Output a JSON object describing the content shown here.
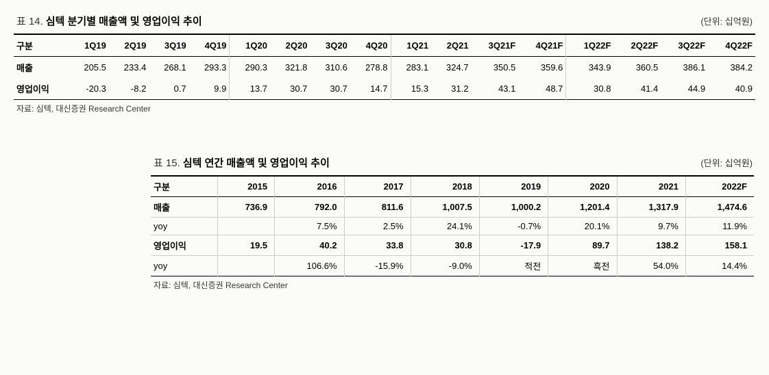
{
  "table14": {
    "prefix": "표 14.",
    "title": "심텍 분기별 매출액 및 영업이익 추이",
    "unit": "(단위: 십억원)",
    "columns": [
      "구분",
      "1Q19",
      "2Q19",
      "3Q19",
      "4Q19",
      "1Q20",
      "2Q20",
      "3Q20",
      "4Q20",
      "1Q21",
      "2Q21",
      "3Q21F",
      "4Q21F",
      "1Q22F",
      "2Q22F",
      "3Q22F",
      "4Q22F"
    ],
    "rows": [
      {
        "label": "매출",
        "values": [
          "205.5",
          "233.4",
          "268.1",
          "293.3",
          "290.3",
          "321.8",
          "310.6",
          "278.8",
          "283.1",
          "324.7",
          "350.5",
          "359.6",
          "343.9",
          "360.5",
          "386.1",
          "384.2"
        ]
      },
      {
        "label": "영업이익",
        "values": [
          "-20.3",
          "-8.2",
          "0.7",
          "9.9",
          "13.7",
          "30.7",
          "30.7",
          "14.7",
          "15.3",
          "31.2",
          "43.1",
          "48.7",
          "30.8",
          "41.4",
          "44.9",
          "40.9"
        ]
      }
    ],
    "group_starts": [
      5,
      9,
      13
    ],
    "source": "자료: 심텍, 대신증권 Research Center"
  },
  "table15": {
    "prefix": "표 15.",
    "title": "심텍 연간 매출액 및 영업이익 추이",
    "unit": "(단위: 십억원)",
    "columns": [
      "구분",
      "2015",
      "2016",
      "2017",
      "2018",
      "2019",
      "2020",
      "2021",
      "2022F"
    ],
    "rows": [
      {
        "label": "매출",
        "bold": true,
        "values": [
          "736.9",
          "792.0",
          "811.6",
          "1,007.5",
          "1,000.2",
          "1,201.4",
          "1,317.9",
          "1,474.6"
        ]
      },
      {
        "label": "yoy",
        "bold": false,
        "values": [
          "",
          "7.5%",
          "2.5%",
          "24.1%",
          "-0.7%",
          "20.1%",
          "9.7%",
          "11.9%"
        ]
      },
      {
        "label": "영업이익",
        "bold": true,
        "values": [
          "19.5",
          "40.2",
          "33.8",
          "30.8",
          "-17.9",
          "89.7",
          "138.2",
          "158.1"
        ]
      },
      {
        "label": "yoy",
        "bold": false,
        "values": [
          "",
          "106.6%",
          "-15.9%",
          "-9.0%",
          "적전",
          "흑전",
          "54.0%",
          "14.4%"
        ]
      }
    ],
    "source": "자료: 심텍, 대신증권 Research Center"
  }
}
